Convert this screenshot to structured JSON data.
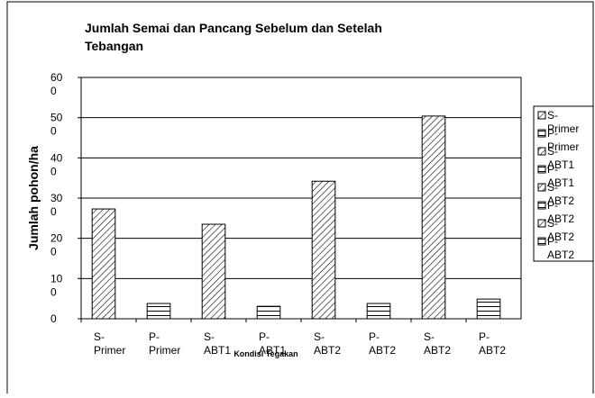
{
  "chart_data": {
    "type": "bar",
    "title": "Jumlah Semai dan Pancang Sebelum dan Setelah Tebangan",
    "y_label": "Jumlah pohon/ha",
    "x_label": "Kondisi Tegakan",
    "categories": [
      "S-Primer",
      "P-Primer",
      "S-ABT1",
      "P-ABT1",
      "S-ABT2",
      "P-ABT2",
      "S-ABT2",
      "P-ABT2"
    ],
    "values": [
      273,
      38,
      235,
      31,
      342,
      38,
      504,
      49
    ],
    "patterns": [
      "diagonal",
      "horizontal",
      "diagonal",
      "horizontal",
      "diagonal",
      "horizontal",
      "diagonal",
      "horizontal"
    ],
    "color": "#000000",
    "ylim": [
      0,
      600
    ],
    "yticks": [
      0,
      100,
      200,
      300,
      400,
      500,
      600
    ],
    "grid": true,
    "legend": "right"
  }
}
